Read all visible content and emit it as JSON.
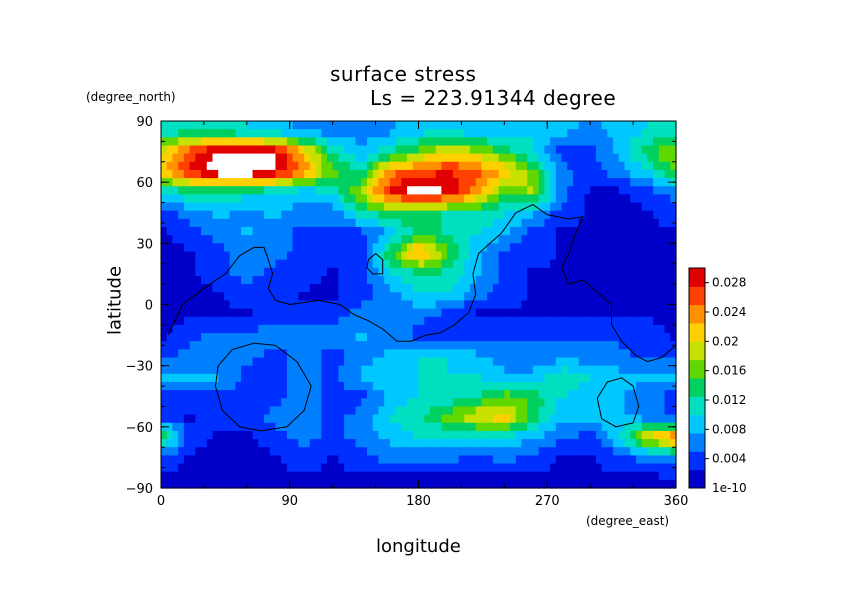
{
  "chart_data": {
    "type": "heatmap",
    "title": "surface stress",
    "subtitle": "Ls = 223.91344 degree",
    "xlabel": "longitude",
    "ylabel": "latitude",
    "x_unit": "(degree_east)",
    "y_unit": "(degree_north)",
    "xlim": [
      0,
      360
    ],
    "ylim": [
      -90,
      90
    ],
    "x_ticks": [
      "0",
      "90",
      "180",
      "270",
      "360"
    ],
    "y_ticks": [
      "90",
      "60",
      "30",
      "0",
      "−30",
      "−60",
      "−90"
    ],
    "x_tick_values": [
      0,
      90,
      180,
      270,
      360
    ],
    "y_tick_values": [
      90,
      60,
      30,
      0,
      -30,
      -60,
      -90
    ],
    "colorbar": {
      "min_label": "1e-10",
      "tick_labels": [
        "0.004",
        "0.008",
        "0.012",
        "0.016",
        "0.02",
        "0.024",
        "0.028"
      ],
      "tick_values": [
        0.004,
        0.008,
        0.012,
        0.016,
        0.02,
        0.024,
        0.028
      ],
      "range": [
        0,
        0.03
      ],
      "palette": [
        "#0000c8",
        "#0030ff",
        "#0080ff",
        "#00c8ff",
        "#00e0c0",
        "#00d060",
        "#60d800",
        "#c8e000",
        "#ffd000",
        "#ff9000",
        "#ff4000",
        "#e00000"
      ]
    },
    "field": {
      "lat_from": 85,
      "lat_to": -85,
      "lat_step": 10,
      "lon_from": 0,
      "lon_to": 360,
      "lon_step": 20,
      "values": [
        [
          0.01,
          0.012,
          0.011,
          0.01,
          0.008,
          0.007,
          0.006,
          0.006,
          0.007,
          0.009,
          0.01,
          0.008,
          0.009,
          0.01,
          0.008,
          0.007,
          0.008,
          0.01,
          0.011
        ],
        [
          0.02,
          0.026,
          0.031,
          0.032,
          0.03,
          0.022,
          0.012,
          0.008,
          0.012,
          0.016,
          0.02,
          0.018,
          0.014,
          0.01,
          0.004,
          0.004,
          0.008,
          0.014,
          0.018
        ],
        [
          0.022,
          0.028,
          0.032,
          0.033,
          0.03,
          0.024,
          0.016,
          0.012,
          0.024,
          0.026,
          0.028,
          0.026,
          0.022,
          0.016,
          0.006,
          0.004,
          0.006,
          0.01,
          0.016
        ],
        [
          0.01,
          0.012,
          0.012,
          0.011,
          0.01,
          0.008,
          0.01,
          0.018,
          0.028,
          0.032,
          0.03,
          0.024,
          0.016,
          0.018,
          0.006,
          0.002,
          0.002,
          0.004,
          0.006
        ],
        [
          0.004,
          0.006,
          0.008,
          0.007,
          0.008,
          0.006,
          0.006,
          0.012,
          0.014,
          0.014,
          0.012,
          0.012,
          0.01,
          0.008,
          0.004,
          0.002,
          0.002,
          0.002,
          0.004
        ],
        [
          0.002,
          0.004,
          0.006,
          0.008,
          0.006,
          0.004,
          0.004,
          0.004,
          0.008,
          0.014,
          0.012,
          0.01,
          0.008,
          0.004,
          0.002,
          0.002,
          0.002,
          0.002,
          0.002
        ],
        [
          0.002,
          0.002,
          0.004,
          0.006,
          0.006,
          0.004,
          0.004,
          0.004,
          0.014,
          0.024,
          0.016,
          0.008,
          0.004,
          0.004,
          0.002,
          0.002,
          0.002,
          0.002,
          0.002
        ],
        [
          0.002,
          0.002,
          0.004,
          0.006,
          0.004,
          0.004,
          0.002,
          0.004,
          0.01,
          0.012,
          0.012,
          0.008,
          0.004,
          0.002,
          0.002,
          0.002,
          0.002,
          0.002,
          0.002
        ],
        [
          0.002,
          0.002,
          0.002,
          0.004,
          0.004,
          0.002,
          0.002,
          0.004,
          0.006,
          0.01,
          0.01,
          0.006,
          0.004,
          0.002,
          0.002,
          0.002,
          0.002,
          0.002,
          0.002
        ],
        [
          0.002,
          0.002,
          0.002,
          0.002,
          0.004,
          0.004,
          0.004,
          0.006,
          0.006,
          0.006,
          0.004,
          0.002,
          0.002,
          0.002,
          0.002,
          0.002,
          0.002,
          0.002,
          0.002
        ],
        [
          0.002,
          0.004,
          0.006,
          0.006,
          0.006,
          0.006,
          0.006,
          0.008,
          0.006,
          0.004,
          0.004,
          0.004,
          0.004,
          0.004,
          0.004,
          0.004,
          0.004,
          0.004,
          0.002
        ],
        [
          0.004,
          0.006,
          0.006,
          0.006,
          0.004,
          0.006,
          0.004,
          0.006,
          0.008,
          0.01,
          0.01,
          0.008,
          0.006,
          0.006,
          0.006,
          0.006,
          0.006,
          0.004,
          0.004
        ],
        [
          0.008,
          0.008,
          0.008,
          0.004,
          0.004,
          0.006,
          0.004,
          0.008,
          0.01,
          0.01,
          0.01,
          0.01,
          0.008,
          0.008,
          0.012,
          0.01,
          0.008,
          0.008,
          0.008
        ],
        [
          0.004,
          0.004,
          0.004,
          0.004,
          0.004,
          0.006,
          0.004,
          0.004,
          0.008,
          0.01,
          0.01,
          0.012,
          0.016,
          0.014,
          0.01,
          0.008,
          0.008,
          0.006,
          0.004
        ],
        [
          0.004,
          0.002,
          0.004,
          0.004,
          0.006,
          0.006,
          0.004,
          0.006,
          0.01,
          0.012,
          0.016,
          0.02,
          0.022,
          0.014,
          0.008,
          0.008,
          0.008,
          0.006,
          0.004
        ],
        [
          0.016,
          0.004,
          0.002,
          0.002,
          0.004,
          0.006,
          0.004,
          0.006,
          0.008,
          0.01,
          0.01,
          0.01,
          0.01,
          0.008,
          0.006,
          0.004,
          0.01,
          0.02,
          0.026
        ],
        [
          0.004,
          0.002,
          0.002,
          0.002,
          0.002,
          0.004,
          0.002,
          0.004,
          0.006,
          0.006,
          0.006,
          0.004,
          0.006,
          0.004,
          0.002,
          0.002,
          0.004,
          0.006,
          0.008
        ],
        [
          0.002,
          0.002,
          0.002,
          0.002,
          0.002,
          0.002,
          0.002,
          0.002,
          0.002,
          0.002,
          0.002,
          0.002,
          0.002,
          0.002,
          0.002,
          0.002,
          0.002,
          0.002,
          0.002
        ]
      ]
    },
    "contours": [
      [
        [
          5,
          -15
        ],
        [
          15,
          0
        ],
        [
          30,
          8
        ],
        [
          45,
          15
        ],
        [
          55,
          24
        ],
        [
          65,
          28
        ],
        [
          72,
          28
        ],
        [
          75,
          22
        ],
        [
          78,
          15
        ],
        [
          75,
          8
        ],
        [
          80,
          2
        ],
        [
          90,
          0
        ],
        [
          110,
          2
        ],
        [
          125,
          0
        ],
        [
          135,
          -5
        ],
        [
          145,
          -8
        ],
        [
          155,
          -12
        ],
        [
          165,
          -18
        ],
        [
          175,
          -18
        ],
        [
          185,
          -15
        ],
        [
          195,
          -14
        ],
        [
          205,
          -10
        ],
        [
          215,
          -4
        ],
        [
          220,
          5
        ],
        [
          218,
          15
        ],
        [
          222,
          25
        ],
        [
          230,
          30
        ],
        [
          238,
          35
        ],
        [
          248,
          45
        ],
        [
          260,
          49
        ],
        [
          270,
          44
        ],
        [
          285,
          42
        ],
        [
          295,
          43
        ],
        [
          290,
          35
        ],
        [
          285,
          25
        ],
        [
          280,
          18
        ],
        [
          285,
          10
        ],
        [
          295,
          12
        ],
        [
          305,
          6
        ],
        [
          315,
          0
        ],
        [
          315,
          -10
        ],
        [
          322,
          -18
        ],
        [
          332,
          -25
        ],
        [
          340,
          -28
        ],
        [
          350,
          -26
        ],
        [
          360,
          -20
        ]
      ],
      [
        [
          145,
          22
        ],
        [
          150,
          25
        ],
        [
          155,
          22
        ],
        [
          155,
          15
        ],
        [
          148,
          15
        ],
        [
          144,
          18
        ],
        [
          145,
          22
        ]
      ],
      [
        [
          40,
          -30
        ],
        [
          50,
          -22
        ],
        [
          65,
          -19
        ],
        [
          80,
          -20
        ],
        [
          95,
          -28
        ],
        [
          105,
          -40
        ],
        [
          100,
          -52
        ],
        [
          88,
          -60
        ],
        [
          70,
          -62
        ],
        [
          55,
          -60
        ],
        [
          43,
          -52
        ],
        [
          38,
          -40
        ],
        [
          40,
          -30
        ]
      ],
      [
        [
          305,
          -46
        ],
        [
          312,
          -38
        ],
        [
          322,
          -36
        ],
        [
          330,
          -40
        ],
        [
          334,
          -50
        ],
        [
          330,
          -58
        ],
        [
          318,
          -60
        ],
        [
          308,
          -56
        ],
        [
          305,
          -46
        ]
      ]
    ]
  }
}
